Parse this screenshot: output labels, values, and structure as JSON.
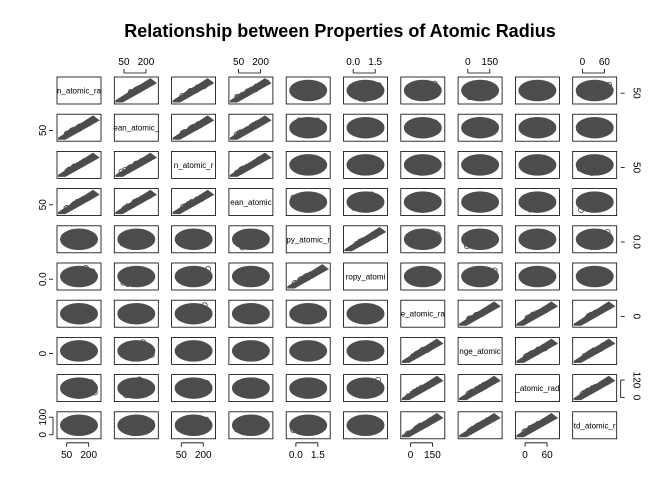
{
  "chart_data": {
    "type": "scatter",
    "title": "Relationship between Properties of Atomic Radius",
    "n_vars": 10,
    "variables": [
      "mean_atomic_radius",
      "wtd_mean_atomic_radius",
      "gmean_atomic_radius",
      "wtd_gmean_atomic_radius",
      "entropy_atomic_radius",
      "wtd_entropy_atomic_radius",
      "range_atomic_radius",
      "wtd_range_atomic_radius",
      "std_atomic_radius",
      "wtd_std_atomic_radius"
    ],
    "diagonal_labels": [
      "n_atomic_ra",
      "ean_atomic_",
      "n_atomic_r",
      "ean_atomic",
      "py_atomic_r",
      "ropy_atomi",
      "e_atomic_ra",
      "nge_atomic",
      "_atomic_rad",
      "td_atomic_r"
    ],
    "ranges": [
      [
        40,
        300
      ],
      [
        40,
        300
      ],
      [
        40,
        300
      ],
      [
        40,
        300
      ],
      [
        0,
        2.3
      ],
      [
        0,
        1.9
      ],
      [
        0,
        260
      ],
      [
        0,
        230
      ],
      [
        0,
        115
      ],
      [
        0,
        110
      ]
    ],
    "axis_ticks": {
      "top": [
        {
          "col": 2,
          "labels": [
            "50",
            "200"
          ]
        },
        {
          "col": 4,
          "labels": [
            "50",
            "200"
          ]
        },
        {
          "col": 6,
          "labels": [
            "0.0",
            "1.5"
          ]
        },
        {
          "col": 8,
          "labels": [
            "0",
            "150"
          ]
        },
        {
          "col": 10,
          "labels": [
            "0",
            "60"
          ]
        }
      ],
      "bottom": [
        {
          "col": 1,
          "labels": [
            "50",
            "200"
          ]
        },
        {
          "col": 3,
          "labels": [
            "50",
            "200"
          ]
        },
        {
          "col": 5,
          "labels": [
            "0.0",
            "1.5"
          ]
        },
        {
          "col": 7,
          "labels": [
            "0",
            "150"
          ]
        },
        {
          "col": 9,
          "labels": [
            "0",
            "60"
          ]
        }
      ],
      "left": [
        {
          "row": 2,
          "labels": [
            "50"
          ]
        },
        {
          "row": 4,
          "labels": [
            "50"
          ]
        },
        {
          "row": 6,
          "labels": [
            "0.0"
          ]
        },
        {
          "row": 8,
          "labels": [
            "0"
          ]
        },
        {
          "row": 10,
          "labels": [
            "0",
            "100"
          ]
        }
      ],
      "right": [
        {
          "row": 1,
          "labels": [
            "50"
          ]
        },
        {
          "row": 3,
          "labels": [
            "50"
          ]
        },
        {
          "row": 5,
          "labels": [
            "0.0"
          ]
        },
        {
          "row": 7,
          "labels": [
            "0"
          ]
        },
        {
          "row": 9,
          "labels": [
            "0",
            "120"
          ]
        }
      ]
    },
    "grid": false,
    "legend": "none"
  }
}
